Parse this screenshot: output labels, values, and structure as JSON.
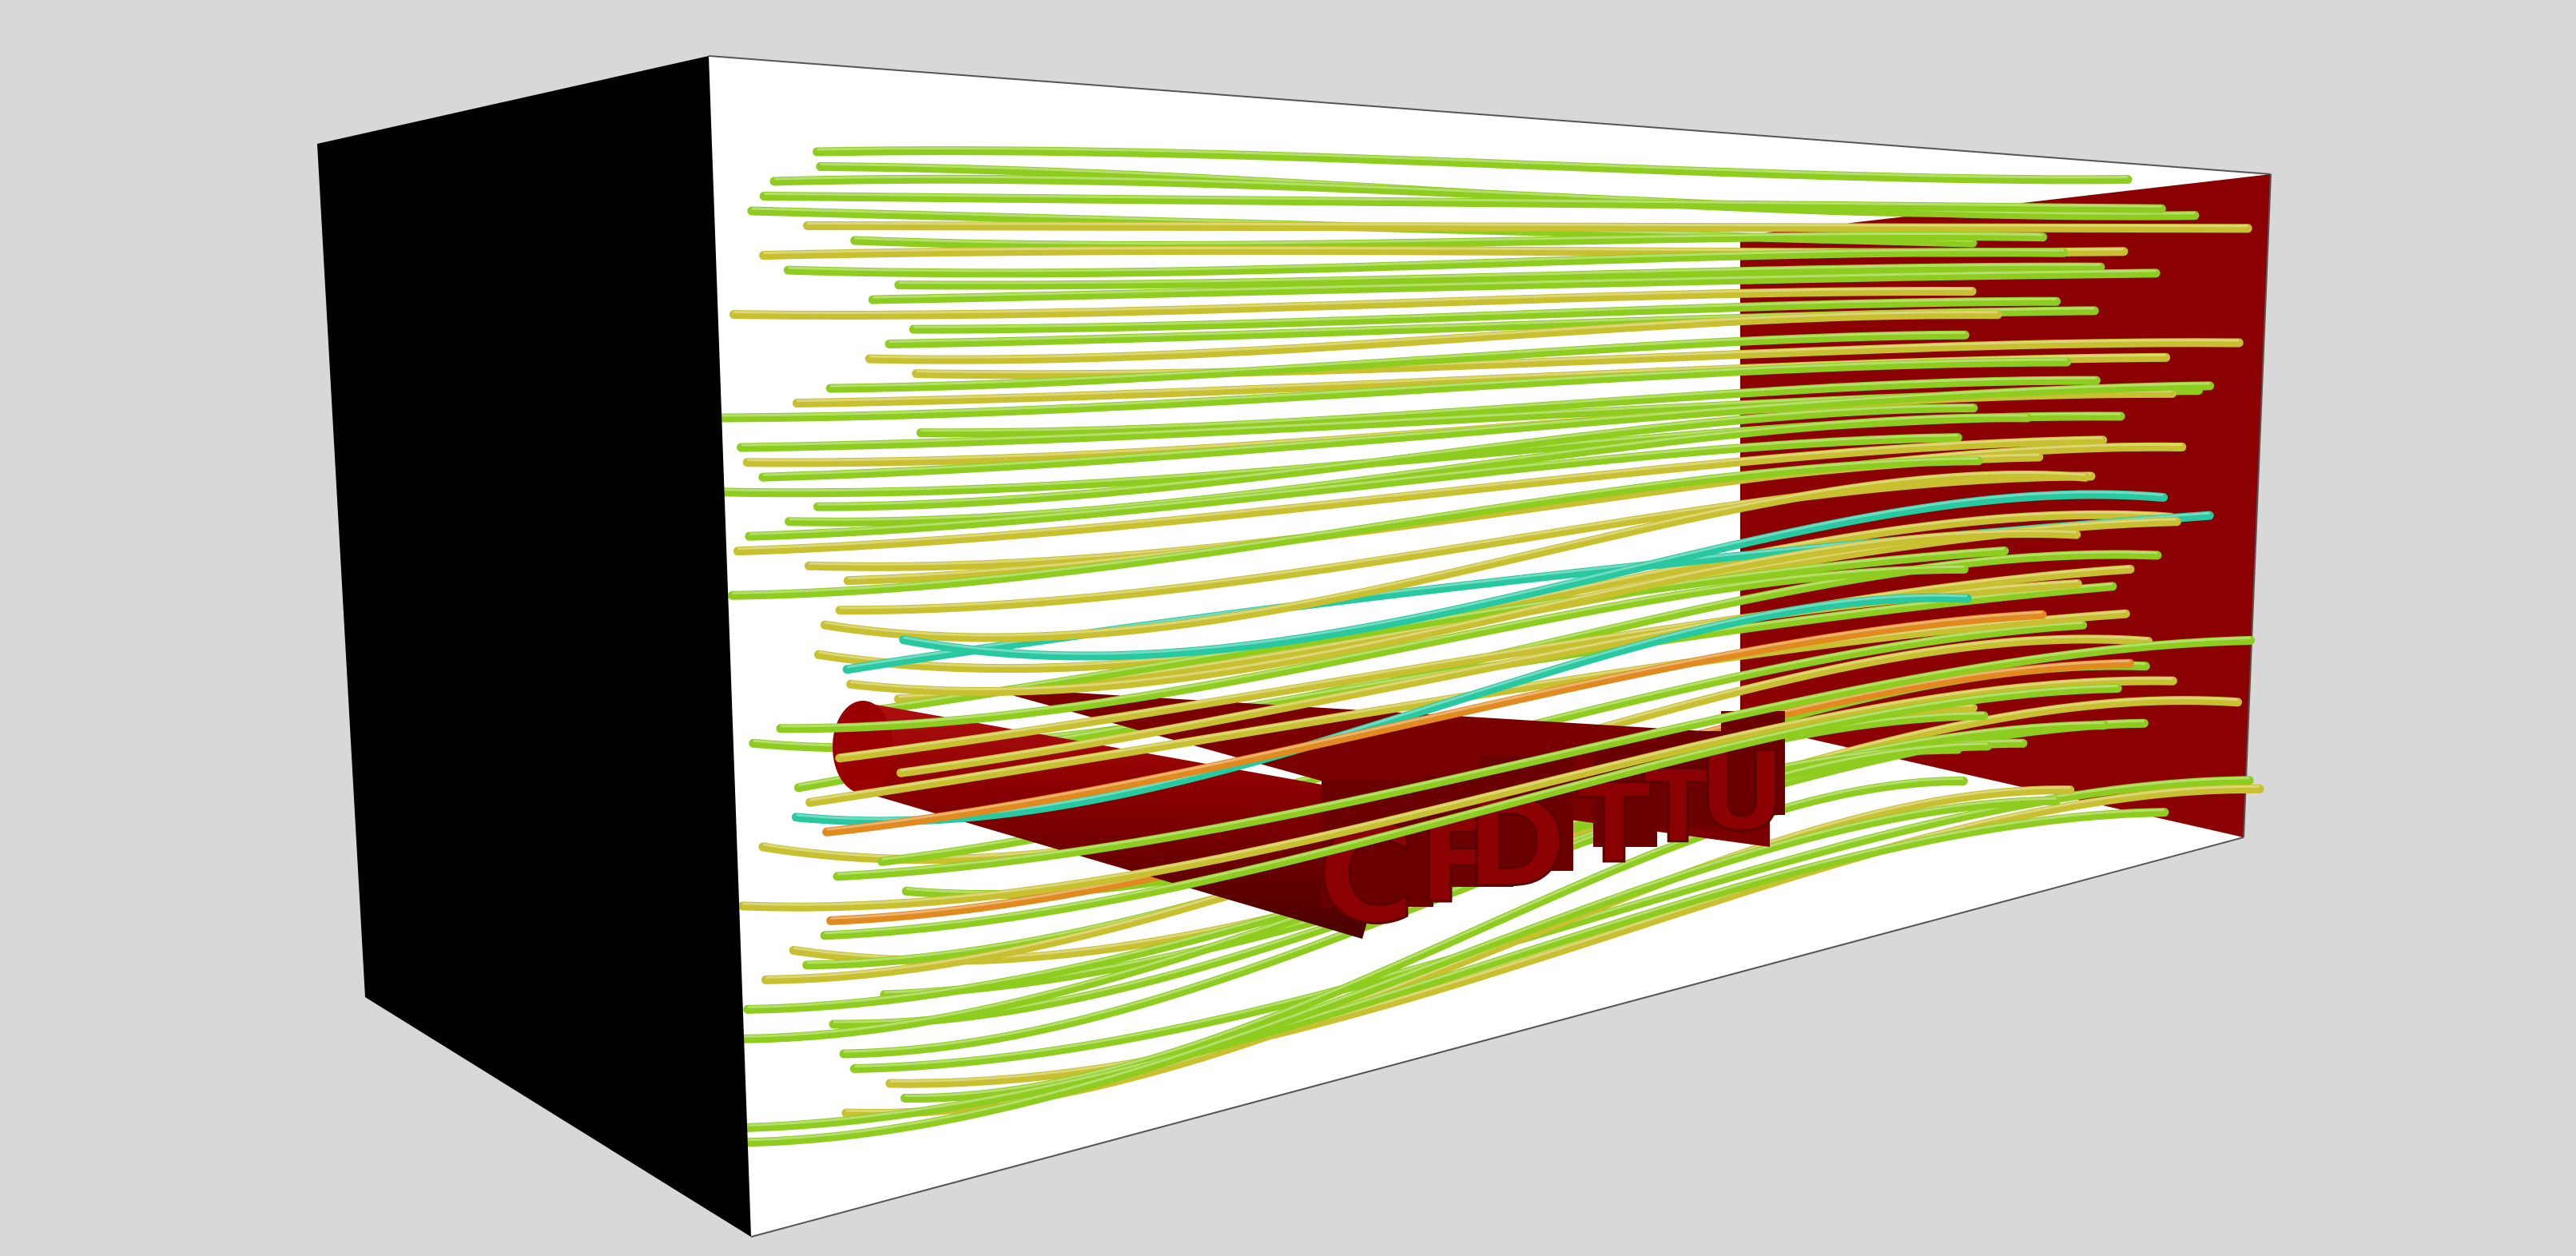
{
  "scene": {
    "background": "#d8d8d8",
    "inlet_face_color": "#000000",
    "outlet_face_color": "#8b0000",
    "obstacle_color": "#8b0000",
    "obstacle_dark": "#6a0000",
    "domain_edge_color": "#444444",
    "obstacle_letters": [
      "C",
      "F",
      "D",
      "T",
      "T",
      "U"
    ],
    "streamline_palette": {
      "slow": "#1e9fd0",
      "teal": "#28c8a0",
      "green": "#8fcc20",
      "yellow": "#c8c030",
      "orange": "#e08a20"
    },
    "streamline_count": 68
  }
}
